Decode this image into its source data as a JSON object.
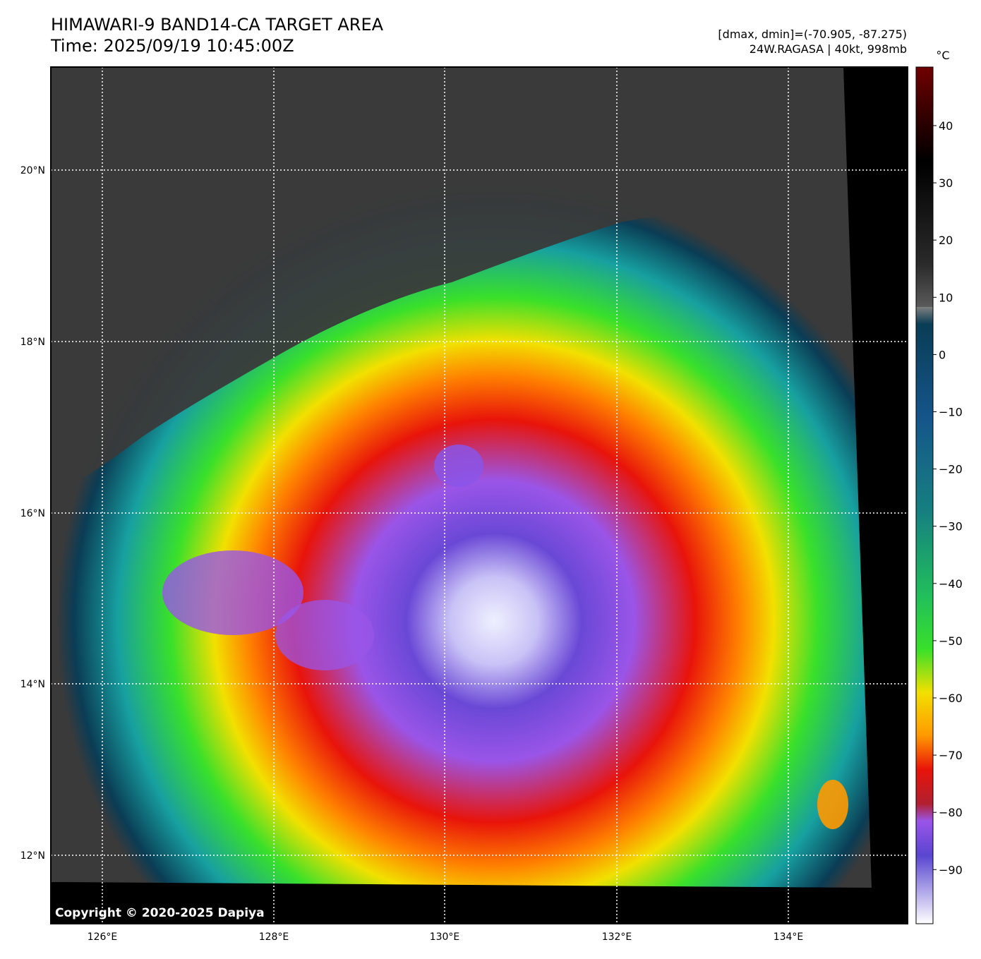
{
  "header": {
    "title_line1": "HIMAWARI-9 BAND14-CA TARGET AREA",
    "title_line2": "Time: 2025/09/19 10:45:00Z",
    "info_line1": "[dmax, dmin]=(-70.905, -87.275)",
    "info_line2": "24W.RAGASA | 40kt, 998mb"
  },
  "map": {
    "lon_labels": [
      "126°E",
      "128°E",
      "130°E",
      "132°E",
      "134°E"
    ],
    "lat_labels": [
      "20°N",
      "18°N",
      "16°N",
      "14°N",
      "12°N"
    ]
  },
  "colorbar": {
    "unit": "°C",
    "ticks": [
      "40",
      "30",
      "20",
      "10",
      "0",
      "−10",
      "−20",
      "−30",
      "−40",
      "−50",
      "−60",
      "−70",
      "−80",
      "−90"
    ],
    "colors": {
      "warm_top": "#700000",
      "black": "#000000",
      "gray": "#7f7f7f",
      "dark_teal": "#0a3d55",
      "teal": "#17a0a0",
      "green": "#39e02a",
      "yellow": "#f2e000",
      "orange": "#ff9a00",
      "red": "#e8140a",
      "purple": "#9a55e8",
      "blue_violet": "#5a45d0",
      "white": "#ffffff"
    }
  },
  "footer": {
    "copyright": "Copyright © 2020-2025 Dapiya"
  }
}
